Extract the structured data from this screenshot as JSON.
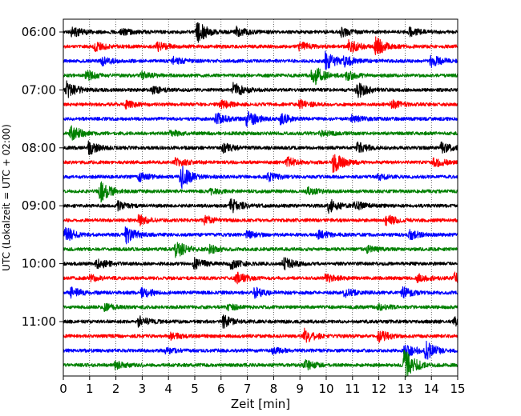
{
  "chart_data": {
    "type": "line",
    "title": "",
    "xlabel": "Zeit  [min]",
    "ylabel": "UTC (Lokalzeit = UTC + 02:00)",
    "xlim": [
      0,
      15
    ],
    "xticks": [
      0,
      1,
      2,
      3,
      4,
      5,
      6,
      7,
      8,
      9,
      10,
      11,
      12,
      13,
      14,
      15
    ],
    "vertical_grid": "dotted",
    "yticks": [
      "06:00",
      "07:00",
      "08:00",
      "09:00",
      "10:00",
      "11:00"
    ],
    "traces_per_hour": 4,
    "trace_minutes": 15,
    "trace_colors": [
      "#000000",
      "#ff0000",
      "#0000ff",
      "#008000"
    ],
    "traces": [
      {
        "start": "06:00",
        "color": "#000000",
        "events": [
          [
            0.35,
            0.7
          ],
          [
            2.2,
            0.5
          ],
          [
            5.1,
            1.6
          ],
          [
            6.6,
            0.7
          ],
          [
            10.6,
            0.6
          ],
          [
            13.2,
            0.6
          ]
        ]
      },
      {
        "start": "06:15",
        "color": "#ff0000",
        "events": [
          [
            1.2,
            0.7
          ],
          [
            3.6,
            0.6
          ],
          [
            9.0,
            0.6
          ],
          [
            10.9,
            0.9
          ],
          [
            11.9,
            1.4
          ]
        ]
      },
      {
        "start": "06:30",
        "color": "#0000ff",
        "events": [
          [
            1.5,
            0.6
          ],
          [
            4.2,
            0.5
          ],
          [
            10.0,
            1.3
          ],
          [
            10.7,
            0.7
          ],
          [
            14.0,
            0.9
          ]
        ]
      },
      {
        "start": "06:45",
        "color": "#008000",
        "events": [
          [
            0.9,
            0.7
          ],
          [
            3.0,
            0.5
          ],
          [
            9.5,
            1.6
          ],
          [
            10.8,
            0.7
          ]
        ]
      },
      {
        "start": "07:00",
        "color": "#000000",
        "events": [
          [
            0.15,
            1.2
          ],
          [
            3.4,
            0.5
          ],
          [
            6.5,
            1.1
          ],
          [
            11.2,
            1.2
          ]
        ]
      },
      {
        "start": "07:15",
        "color": "#ff0000",
        "events": [
          [
            2.4,
            0.5
          ],
          [
            6.0,
            0.6
          ],
          [
            9.0,
            0.6
          ],
          [
            12.5,
            0.6
          ]
        ]
      },
      {
        "start": "07:30",
        "color": "#0000ff",
        "events": [
          [
            5.8,
            0.9
          ],
          [
            7.0,
            1.2
          ],
          [
            8.3,
            0.7
          ],
          [
            11.0,
            0.5
          ]
        ]
      },
      {
        "start": "07:45",
        "color": "#008000",
        "events": [
          [
            0.3,
            1.2
          ],
          [
            4.1,
            0.4
          ],
          [
            9.8,
            0.4
          ]
        ]
      },
      {
        "start": "08:00",
        "color": "#000000",
        "events": [
          [
            1.0,
            0.9
          ],
          [
            6.1,
            0.7
          ],
          [
            11.2,
            0.8
          ],
          [
            14.4,
            0.7
          ]
        ]
      },
      {
        "start": "08:15",
        "color": "#ff0000",
        "events": [
          [
            4.3,
            0.6
          ],
          [
            8.5,
            0.8
          ],
          [
            10.3,
            1.4
          ],
          [
            14.1,
            0.8
          ]
        ]
      },
      {
        "start": "08:30",
        "color": "#0000ff",
        "events": [
          [
            2.9,
            0.6
          ],
          [
            4.5,
            1.6
          ],
          [
            7.8,
            0.6
          ],
          [
            12.0,
            0.4
          ]
        ]
      },
      {
        "start": "08:45",
        "color": "#008000",
        "events": [
          [
            1.4,
            1.6
          ],
          [
            5.6,
            0.4
          ],
          [
            9.3,
            0.5
          ]
        ]
      },
      {
        "start": "09:00",
        "color": "#000000",
        "events": [
          [
            2.1,
            0.6
          ],
          [
            6.4,
            1.0
          ],
          [
            10.1,
            1.0
          ],
          [
            11.1,
            0.6
          ]
        ]
      },
      {
        "start": "09:15",
        "color": "#ff0000",
        "events": [
          [
            2.9,
            0.7
          ],
          [
            5.4,
            0.6
          ],
          [
            12.3,
            0.8
          ]
        ]
      },
      {
        "start": "09:30",
        "color": "#0000ff",
        "events": [
          [
            0.1,
            1.1
          ],
          [
            2.4,
            1.3
          ],
          [
            7.0,
            0.5
          ],
          [
            9.7,
            0.6
          ],
          [
            13.2,
            0.7
          ]
        ]
      },
      {
        "start": "09:45",
        "color": "#008000",
        "events": [
          [
            4.3,
            1.3
          ],
          [
            5.6,
            0.5
          ],
          [
            11.6,
            0.4
          ]
        ]
      },
      {
        "start": "10:00",
        "color": "#000000",
        "events": [
          [
            1.3,
            0.8
          ],
          [
            5.0,
            0.8
          ],
          [
            6.4,
            0.7
          ],
          [
            8.4,
            0.9
          ]
        ]
      },
      {
        "start": "10:15",
        "color": "#ff0000",
        "events": [
          [
            1.0,
            0.5
          ],
          [
            6.6,
            0.8
          ],
          [
            10.0,
            0.6
          ],
          [
            13.5,
            0.6
          ],
          [
            14.9,
            0.9
          ]
        ]
      },
      {
        "start": "10:30",
        "color": "#0000ff",
        "events": [
          [
            0.3,
            0.8
          ],
          [
            3.0,
            0.8
          ],
          [
            7.3,
            0.7
          ],
          [
            10.7,
            0.6
          ],
          [
            12.9,
            0.8
          ]
        ]
      },
      {
        "start": "10:45",
        "color": "#008000",
        "events": [
          [
            1.6,
            0.5
          ],
          [
            6.3,
            0.4
          ],
          [
            12.0,
            0.4
          ]
        ]
      },
      {
        "start": "11:00",
        "color": "#000000",
        "events": [
          [
            2.9,
            0.7
          ],
          [
            6.1,
            0.9
          ],
          [
            14.9,
            0.6
          ]
        ]
      },
      {
        "start": "11:15",
        "color": "#ff0000",
        "events": [
          [
            4.1,
            0.5
          ],
          [
            9.2,
            1.0
          ],
          [
            12.0,
            0.9
          ]
        ]
      },
      {
        "start": "11:30",
        "color": "#0000ff",
        "events": [
          [
            3.9,
            0.4
          ],
          [
            8.0,
            0.4
          ],
          [
            13.0,
            1.1
          ],
          [
            13.8,
            1.3
          ]
        ]
      },
      {
        "start": "11:45",
        "color": "#008000",
        "events": [
          [
            2.0,
            0.5
          ],
          [
            9.2,
            0.7
          ],
          [
            13.0,
            2.4
          ]
        ]
      }
    ]
  }
}
